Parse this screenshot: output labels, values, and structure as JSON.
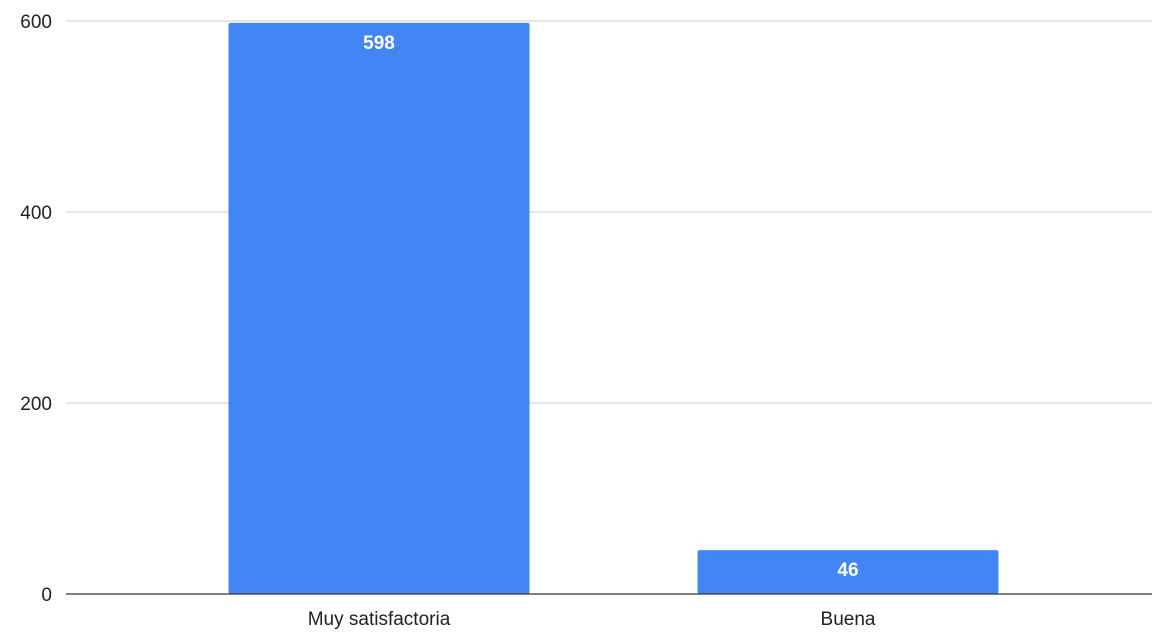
{
  "chart_data": {
    "type": "bar",
    "title": "",
    "xlabel": "",
    "ylabel": "",
    "categories": [
      "Muy satisfactoria",
      "Buena"
    ],
    "values": [
      598,
      46
    ],
    "data_labels": [
      "598",
      "46"
    ],
    "ylim": [
      0,
      600
    ],
    "yticks": [
      0,
      200,
      400,
      600
    ],
    "ytick_labels": [
      "0",
      "200",
      "400",
      "600"
    ],
    "grid": true,
    "legend": "none",
    "bar_color": "#4285f4",
    "data_label_color": "#ffffff",
    "grid_color": "#cccccc",
    "baseline_color": "#333333",
    "text_color": "#222222"
  }
}
